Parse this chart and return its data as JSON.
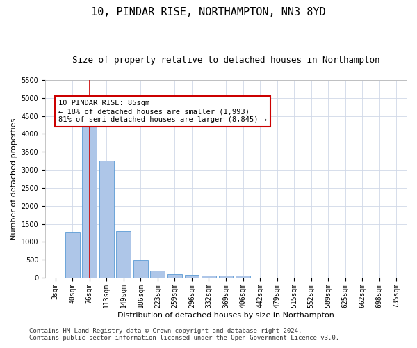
{
  "title": "10, PINDAR RISE, NORTHAMPTON, NN3 8YD",
  "subtitle": "Size of property relative to detached houses in Northampton",
  "xlabel": "Distribution of detached houses by size in Northampton",
  "ylabel": "Number of detached properties",
  "categories": [
    "3sqm",
    "40sqm",
    "76sqm",
    "113sqm",
    "149sqm",
    "186sqm",
    "223sqm",
    "259sqm",
    "296sqm",
    "332sqm",
    "369sqm",
    "406sqm",
    "442sqm",
    "479sqm",
    "515sqm",
    "552sqm",
    "589sqm",
    "625sqm",
    "662sqm",
    "698sqm",
    "735sqm"
  ],
  "values": [
    0,
    1250,
    4300,
    3250,
    1300,
    490,
    190,
    100,
    80,
    50,
    50,
    50,
    0,
    0,
    0,
    0,
    0,
    0,
    0,
    0,
    0
  ],
  "bar_color": "#aec6e8",
  "bar_edge_color": "#5b9bd5",
  "vline_x_index": 2,
  "vline_color": "#cc0000",
  "annotation_line1": "10 PINDAR RISE: 85sqm",
  "annotation_line2": "← 18% of detached houses are smaller (1,993)",
  "annotation_line3": "81% of semi-detached houses are larger (8,845) →",
  "annotation_box_color": "#ffffff",
  "annotation_box_edge": "#cc0000",
  "ylim": [
    0,
    5500
  ],
  "yticks": [
    0,
    500,
    1000,
    1500,
    2000,
    2500,
    3000,
    3500,
    4000,
    4500,
    5000,
    5500
  ],
  "footer_line1": "Contains HM Land Registry data © Crown copyright and database right 2024.",
  "footer_line2": "Contains public sector information licensed under the Open Government Licence v3.0.",
  "bg_color": "#ffffff",
  "grid_color": "#d0d8e8",
  "title_fontsize": 11,
  "subtitle_fontsize": 9,
  "axis_label_fontsize": 8,
  "tick_fontsize": 7,
  "annotation_fontsize": 7.5,
  "footer_fontsize": 6.5
}
